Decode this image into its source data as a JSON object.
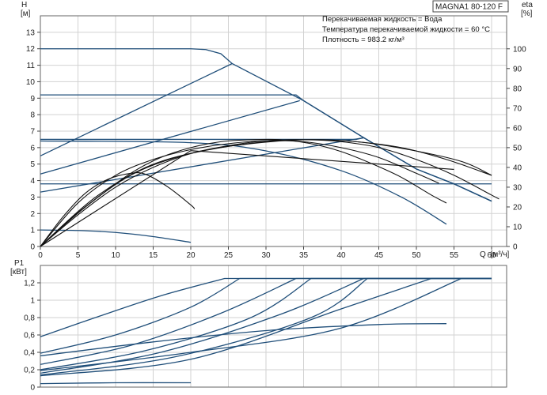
{
  "chart_data": [
    {
      "type": "line",
      "panel": "head-and-efficiency",
      "title": "MAGNA1 80-120 F",
      "info_lines": [
        "Перекачиваемая жидкость = Вода",
        "Температура перекачиваемой жидкости = 60 °C",
        "Плотность = 983.2 кг/м³"
      ],
      "ylabel": "H",
      "yunit": "[м]",
      "y2label": "eta",
      "y2unit": "[%]",
      "xlabel": "Q",
      "xunit": "[м³/ч]",
      "xlim": [
        0,
        62
      ],
      "ylim": [
        0,
        14
      ],
      "y2lim": [
        0,
        116.7
      ],
      "xticks": [
        0,
        5,
        10,
        15,
        20,
        25,
        30,
        35,
        40,
        45,
        50,
        55,
        60
      ],
      "yticks": [
        0,
        1,
        2,
        3,
        4,
        5,
        6,
        7,
        8,
        9,
        10,
        11,
        12,
        13
      ],
      "y2ticks": [
        0,
        10,
        20,
        30,
        40,
        50,
        60,
        70,
        80,
        90,
        100
      ],
      "grid": true,
      "head_curves": [
        {
          "color": "#1f4e79",
          "points": [
            [
              0,
              12
            ],
            [
              20,
              12
            ],
            [
              22,
              11.95
            ],
            [
              24,
              11.7
            ],
            [
              25.5,
              11.1
            ],
            [
              35,
              8.85
            ],
            [
              43,
              6.6
            ],
            [
              50,
              4.7
            ],
            [
              55,
              3.8
            ],
            [
              60,
              2.75
            ]
          ]
        },
        {
          "color": "#1f4e79",
          "points": [
            [
              0,
              9.2
            ],
            [
              34,
              9.2
            ],
            [
              35,
              8.85
            ],
            [
              43,
              6.6
            ],
            [
              50,
              4.7
            ],
            [
              55,
              3.8
            ],
            [
              60,
              2.75
            ]
          ]
        },
        {
          "color": "#1f4e79",
          "points": [
            [
              0,
              6.5
            ],
            [
              42,
              6.5
            ],
            [
              43,
              6.6
            ],
            [
              50,
              4.7
            ],
            [
              55,
              3.8
            ],
            [
              60,
              2.75
            ]
          ]
        },
        {
          "color": "#1f4e79",
          "points": [
            [
              0,
              3.8
            ],
            [
              55,
              3.8
            ],
            [
              60,
              3.8
            ]
          ]
        },
        {
          "color": "#1f4e79",
          "points": [
            [
              0,
              1.0
            ],
            [
              5,
              0.97
            ],
            [
              10,
              0.85
            ],
            [
              15,
              0.6
            ],
            [
              20,
              0.25
            ]
          ]
        },
        {
          "color": "#1f4e79",
          "points": [
            [
              0,
              5.5
            ],
            [
              25.5,
              11.1
            ]
          ]
        },
        {
          "color": "#1f4e79",
          "points": [
            [
              0,
              4.4
            ],
            [
              34.5,
              8.85
            ]
          ]
        },
        {
          "color": "#1f4e79",
          "points": [
            [
              0,
              3.3
            ],
            [
              43,
              6.6
            ]
          ]
        },
        {
          "color": "#1f4e79",
          "points": [
            [
              0,
              6.4
            ],
            [
              20,
              6.3
            ],
            [
              30,
              5.8
            ],
            [
              40,
              4.6
            ],
            [
              48,
              3.0
            ],
            [
              54,
              1.35
            ]
          ]
        }
      ],
      "efficiency_curves": [
        {
          "color": "#111111",
          "points": [
            [
              0,
              0
            ],
            [
              3,
              15
            ],
            [
              6,
              27
            ],
            [
              9,
              34
            ],
            [
              12,
              37
            ],
            [
              14,
              36.5
            ],
            [
              17,
              30
            ],
            [
              20,
              21
            ],
            [
              20.5,
              19
            ]
          ]
        },
        {
          "color": "#111111",
          "points": [
            [
              0,
              0
            ],
            [
              4,
              14
            ],
            [
              8,
              26
            ],
            [
              12,
              37
            ],
            [
              16,
              45
            ],
            [
              20,
              50
            ],
            [
              24,
              53
            ],
            [
              28,
              54
            ],
            [
              32,
              54
            ],
            [
              36,
              52
            ],
            [
              40,
              48
            ],
            [
              44,
              42
            ],
            [
              48,
              35
            ],
            [
              52,
              26
            ],
            [
              54,
              22
            ]
          ]
        },
        {
          "color": "#111111",
          "points": [
            [
              0,
              0
            ],
            [
              5,
              16
            ],
            [
              10,
              30
            ],
            [
              15,
              40
            ],
            [
              20,
              47
            ],
            [
              25,
              51
            ],
            [
              30,
              53.5
            ],
            [
              35,
              54
            ],
            [
              40,
              53
            ],
            [
              45,
              50
            ],
            [
              50,
              44
            ],
            [
              55,
              36
            ],
            [
              60,
              26
            ],
            [
              61,
              24
            ]
          ]
        },
        {
          "color": "#111111",
          "points": [
            [
              0,
              0
            ],
            [
              6,
              20
            ],
            [
              12,
              36
            ],
            [
              18,
              45
            ],
            [
              24,
              50
            ],
            [
              30,
              53
            ],
            [
              36,
              54
            ],
            [
              42,
              53
            ],
            [
              48,
              50
            ],
            [
              54,
              44
            ],
            [
              60,
              36
            ]
          ]
        },
        {
          "color": "#111111",
          "points": [
            [
              0,
              0
            ],
            [
              7,
              24
            ],
            [
              14,
              40
            ],
            [
              21,
              48
            ],
            [
              28,
              52
            ],
            [
              35,
              54
            ],
            [
              42,
              53
            ],
            [
              49,
              49
            ],
            [
              56,
              43
            ],
            [
              60,
              36
            ]
          ]
        },
        {
          "color": "#111111",
          "points": [
            [
              0,
              0
            ],
            [
              5,
              22
            ],
            [
              10,
              36
            ],
            [
              15,
              44
            ],
            [
              20,
              49
            ],
            [
              25,
              52
            ],
            [
              30,
              53.5
            ],
            [
              35,
              53
            ],
            [
              40,
              50
            ],
            [
              45,
              45
            ],
            [
              50,
              37
            ],
            [
              53,
              32
            ]
          ]
        },
        {
          "color": "#111111",
          "points": [
            [
              0,
              0
            ],
            [
              20,
              48.5
            ],
            [
              55,
              39
            ]
          ]
        }
      ]
    },
    {
      "type": "line",
      "panel": "power",
      "ylabel": "P1",
      "yunit": "[кВт]",
      "xlim": [
        0,
        62
      ],
      "ylim": [
        0,
        1.4
      ],
      "yticks": [
        0,
        0.2,
        0.4,
        0.6,
        0.8,
        1.0,
        1.2
      ],
      "ytick_labels": [
        "0",
        "0,2",
        "0,4",
        "0,6",
        "0,8",
        "1",
        "1,2"
      ],
      "grid": true,
      "power_curves": [
        {
          "color": "#1f4e79",
          "points": [
            [
              0,
              0.58
            ],
            [
              8,
              0.82
            ],
            [
              16,
              1.05
            ],
            [
              24.5,
              1.25
            ],
            [
              60,
              1.25
            ]
          ]
        },
        {
          "color": "#1f4e79",
          "points": [
            [
              0,
              0.39
            ],
            [
              10,
              0.6
            ],
            [
              20,
              0.92
            ],
            [
              26.5,
              1.25
            ],
            [
              60,
              1.25
            ]
          ]
        },
        {
          "color": "#1f4e79",
          "points": [
            [
              0,
              0.26
            ],
            [
              12,
              0.48
            ],
            [
              24,
              0.85
            ],
            [
              34,
              1.25
            ],
            [
              60,
              1.25
            ]
          ]
        },
        {
          "color": "#1f4e79",
          "points": [
            [
              0,
              0.2
            ],
            [
              14,
              0.42
            ],
            [
              28,
              0.8
            ],
            [
              36,
              1.25
            ],
            [
              60,
              1.25
            ]
          ]
        },
        {
          "color": "#1f4e79",
          "points": [
            [
              0,
              0.16
            ],
            [
              16,
              0.4
            ],
            [
              32,
              0.84
            ],
            [
              43,
              1.25
            ],
            [
              60,
              1.25
            ]
          ]
        },
        {
          "color": "#1f4e79",
          "points": [
            [
              0,
              0.14
            ],
            [
              18,
              0.35
            ],
            [
              36,
              0.8
            ],
            [
              43.5,
              1.25
            ],
            [
              60,
              1.25
            ]
          ]
        },
        {
          "color": "#1f4e79",
          "points": [
            [
              0,
              0.13
            ],
            [
              20,
              0.32
            ],
            [
              40,
              0.9
            ],
            [
              52,
              1.25
            ],
            [
              60,
              1.25
            ]
          ]
        },
        {
          "color": "#1f4e79",
          "points": [
            [
              0,
              0.19
            ],
            [
              20,
              0.4
            ],
            [
              40,
              0.68
            ],
            [
              56,
              1.25
            ],
            [
              60,
              1.25
            ]
          ]
        },
        {
          "color": "#1f4e79",
          "points": [
            [
              0,
              0.36
            ],
            [
              15,
              0.52
            ],
            [
              30,
              0.65
            ],
            [
              45,
              0.72
            ],
            [
              54,
              0.73
            ]
          ]
        },
        {
          "color": "#1f4e79",
          "points": [
            [
              0,
              0.04
            ],
            [
              10,
              0.05
            ],
            [
              20,
              0.05
            ]
          ]
        }
      ]
    }
  ]
}
